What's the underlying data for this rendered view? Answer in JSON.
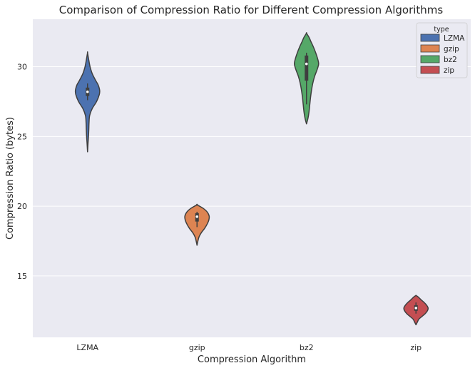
{
  "chart_data": {
    "type": "violin",
    "title": "Comparison of Compression Ratio for Different Compression Algorithms",
    "xlabel": "Compression Algorithm",
    "ylabel": "Compression Ratio (bytes)",
    "categories": [
      "LZMA",
      "gzip",
      "bz2",
      "zip"
    ],
    "ylim": [
      10.6,
      33.4
    ],
    "yticks": [
      15,
      20,
      25,
      30
    ],
    "grid": true,
    "legend": {
      "title": "type",
      "placement": "top-right",
      "entries": [
        "LZMA",
        "gzip",
        "bz2",
        "zip"
      ]
    },
    "colors": {
      "LZMA": "#4c72b0",
      "gzip": "#dd8452",
      "bz2": "#55a868",
      "zip": "#c44e52",
      "background": "#eaeaf2",
      "grid": "#ffffff",
      "outline": "#3f3f3f"
    },
    "series": [
      {
        "name": "LZMA",
        "range": [
          23.9,
          31.0
        ],
        "quartiles": [
          27.9,
          28.2,
          28.5
        ],
        "whiskers": [
          27.6,
          28.8
        ],
        "density": [
          [
            23.9,
            0
          ],
          [
            24.5,
            0.6
          ],
          [
            25.0,
            1.2
          ],
          [
            25.5,
            1.6
          ],
          [
            26.0,
            1.9
          ],
          [
            26.5,
            2.7
          ],
          [
            27.0,
            6.0
          ],
          [
            27.5,
            11.5
          ],
          [
            28.0,
            15.0
          ],
          [
            28.3,
            15.5
          ],
          [
            28.7,
            13.5
          ],
          [
            29.0,
            10.5
          ],
          [
            29.5,
            6.0
          ],
          [
            30.0,
            3.2
          ],
          [
            30.5,
            1.5
          ],
          [
            31.0,
            0
          ]
        ]
      },
      {
        "name": "gzip",
        "range": [
          17.2,
          20.1
        ],
        "quartiles": [
          18.9,
          19.25,
          19.5
        ],
        "whiskers": [
          18.5,
          19.6
        ],
        "density": [
          [
            17.2,
            0
          ],
          [
            17.5,
            1.2
          ],
          [
            17.8,
            2.8
          ],
          [
            18.1,
            6.0
          ],
          [
            18.4,
            10.5
          ],
          [
            18.7,
            14.0
          ],
          [
            19.0,
            16.5
          ],
          [
            19.3,
            17.0
          ],
          [
            19.6,
            14.0
          ],
          [
            19.85,
            8.5
          ],
          [
            20.1,
            0
          ]
        ]
      },
      {
        "name": "bz2",
        "range": [
          25.9,
          32.4
        ],
        "quartiles": [
          29.0,
          30.2,
          30.8
        ],
        "whiskers": [
          27.3,
          31.0
        ],
        "density": [
          [
            25.9,
            0
          ],
          [
            26.3,
            2.0
          ],
          [
            26.8,
            3.5
          ],
          [
            27.3,
            4.5
          ],
          [
            27.8,
            5.5
          ],
          [
            28.3,
            6.8
          ],
          [
            28.8,
            8.5
          ],
          [
            29.3,
            11.0
          ],
          [
            29.8,
            14.5
          ],
          [
            30.2,
            16.5
          ],
          [
            30.6,
            15.0
          ],
          [
            31.0,
            12.5
          ],
          [
            31.4,
            9.5
          ],
          [
            31.8,
            6.0
          ],
          [
            32.1,
            3.5
          ],
          [
            32.4,
            0
          ]
        ]
      },
      {
        "name": "zip",
        "range": [
          11.5,
          13.6
        ],
        "quartiles": [
          12.5,
          12.7,
          12.9
        ],
        "whiskers": [
          12.3,
          13.1
        ],
        "density": [
          [
            11.5,
            0
          ],
          [
            11.7,
            2.0
          ],
          [
            11.9,
            4.0
          ],
          [
            12.1,
            8.5
          ],
          [
            12.3,
            13.0
          ],
          [
            12.5,
            16.0
          ],
          [
            12.7,
            17.0
          ],
          [
            12.9,
            15.0
          ],
          [
            13.1,
            11.5
          ],
          [
            13.3,
            7.0
          ],
          [
            13.5,
            3.0
          ],
          [
            13.6,
            0
          ]
        ]
      }
    ]
  }
}
